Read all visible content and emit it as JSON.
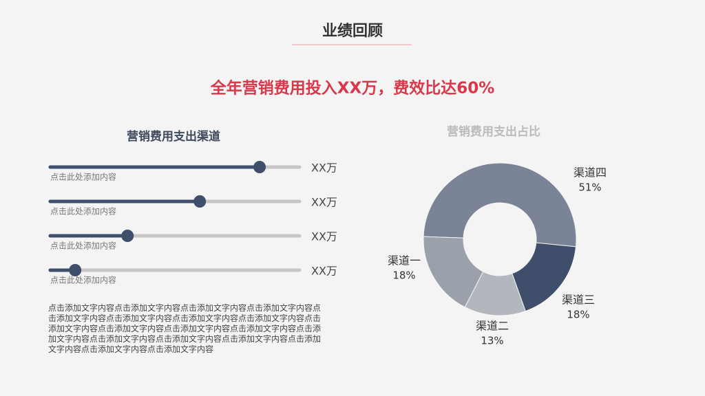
{
  "title": "业绩回顾",
  "headline": "全年营销费用投入XX万，费效比达60%",
  "channels": {
    "title": "营销费用支出渠道",
    "bars": [
      {
        "value": 84,
        "label": "XX万",
        "caption": "点击此处添加内容"
      },
      {
        "value": 60,
        "label": "XX万",
        "caption": "点击此处添加内容"
      },
      {
        "value": 31,
        "label": "XX万",
        "caption": "点击此处添加内容"
      },
      {
        "value": 10,
        "label": "XX万",
        "caption": "点击此处添加内容"
      }
    ]
  },
  "paragraph": "点击添加文字内容点击添加文字内容点击添加文字内容点击添加文字内容点击添加文字内容点击添加文字内容点击添加文字内容点击添加文字内容点击添加文字内容点击添加文字内容点击添加文字内容点击添加文字内容点击添加文字内容点击添加文字内容点击添加文字内容点击添加文字内容点击添加文字内容点击添加文字内容点击添加文字内容",
  "chart_data": {
    "type": "donut",
    "title": "营销费用支出占比",
    "categories": [
      "渠道四",
      "渠道三",
      "渠道二",
      "渠道一"
    ],
    "values": [
      51,
      18,
      13,
      18
    ],
    "value_labels": [
      "51%",
      "18%",
      "13%",
      "18%"
    ],
    "colors": [
      "#7b8496",
      "#3f4f6b",
      "#b2b7bd",
      "#9aa1ab"
    ]
  }
}
